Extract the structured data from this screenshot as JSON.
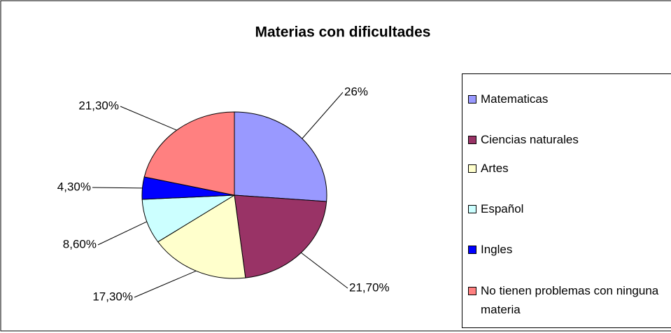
{
  "chart_data": {
    "type": "pie",
    "title": "Materias con dificultades",
    "categories": [
      "Matematicas",
      "Ciencias naturales",
      "Artes",
      "Español",
      "Ingles",
      "No tienen problemas con ninguna materia"
    ],
    "values": [
      26,
      21.7,
      17.3,
      8.6,
      4.3,
      21.3
    ],
    "value_labels": [
      "26%",
      "21,70%",
      "17,30%",
      "8,60%",
      "4,30%",
      "21,30%"
    ],
    "colors": [
      "#9999ff",
      "#993366",
      "#ffffcc",
      "#ccffff",
      "#0000ff",
      "#ff8080"
    ],
    "legend": "right"
  }
}
